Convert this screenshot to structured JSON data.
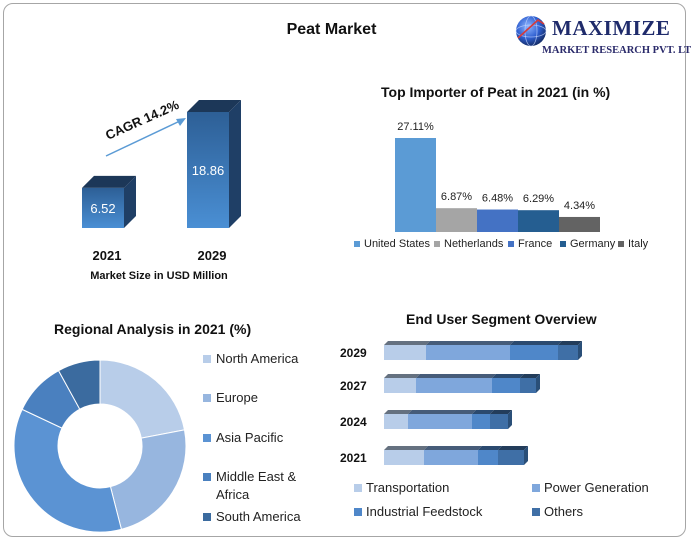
{
  "title": "Peat Market",
  "brand": {
    "name": "MAXIMIZE",
    "subtitle": "MARKET RESEARCH PVT. LTD.",
    "logo_icon": "globe-icon"
  },
  "colors": {
    "blue_light": "#b8cde9",
    "blue_mid": "#7fa7dc",
    "blue": "#4f87c9",
    "blue_dark": "#3f6fa6",
    "gray": "#a6a6a6",
    "charcoal": "#595959",
    "royal": "#4472c4",
    "navy": "#2e5f8c"
  },
  "chart_data": [
    {
      "id": "market-size",
      "type": "bar",
      "categories": [
        "2021",
        "2029"
      ],
      "values": [
        6.52,
        18.86
      ],
      "value_labels": [
        "6.52",
        "18.86"
      ],
      "xlabel": "Market Size in USD Million",
      "annotation": "CAGR 14.2%"
    },
    {
      "id": "top-importer",
      "type": "bar",
      "title": "Top Importer of Peat in 2021 (in %)",
      "categories": [
        "United States",
        "Netherlands",
        "France",
        "Germany",
        "Italy"
      ],
      "values": [
        27.11,
        6.87,
        6.48,
        6.29,
        4.34
      ],
      "value_labels": [
        "27.11%",
        "6.87%",
        "6.48%",
        "6.29%",
        "4.34%"
      ],
      "colors": [
        "#5b9bd5",
        "#a5a5a5",
        "#4472c4",
        "#255e91",
        "#636363"
      ],
      "legend_position": "bottom"
    },
    {
      "id": "regional",
      "type": "pie",
      "title": "Regional Analysis in 2021 (%)",
      "categories": [
        "North America",
        "Europe",
        "Asia Pacific",
        "Middle East & Africa",
        "South America"
      ],
      "values": [
        22,
        24,
        36,
        10,
        8
      ],
      "colors": [
        "#b8cde9",
        "#97b6df",
        "#5b93d3",
        "#4a80bf",
        "#3b6b9f"
      ],
      "legend_position": "right"
    },
    {
      "id": "end-user",
      "type": "bar",
      "orientation": "horizontal",
      "stacked": true,
      "title": "End User Segment Overview",
      "categories": [
        "2029",
        "2027",
        "2024",
        "2021"
      ],
      "series": [
        {
          "name": "Transportation",
          "values": [
            21,
            16,
            12,
            20
          ],
          "color": "#b8cde9"
        },
        {
          "name": "Power Generation",
          "values": [
            42,
            38,
            32,
            27
          ],
          "color": "#7fa7dc"
        },
        {
          "name": "Industrial Feedstock",
          "values": [
            24,
            14,
            9,
            10
          ],
          "color": "#4f87c9"
        },
        {
          "name": "Others",
          "values": [
            10,
            8,
            9,
            13
          ],
          "color": "#3f6fa6"
        }
      ],
      "legend_position": "bottom"
    }
  ]
}
